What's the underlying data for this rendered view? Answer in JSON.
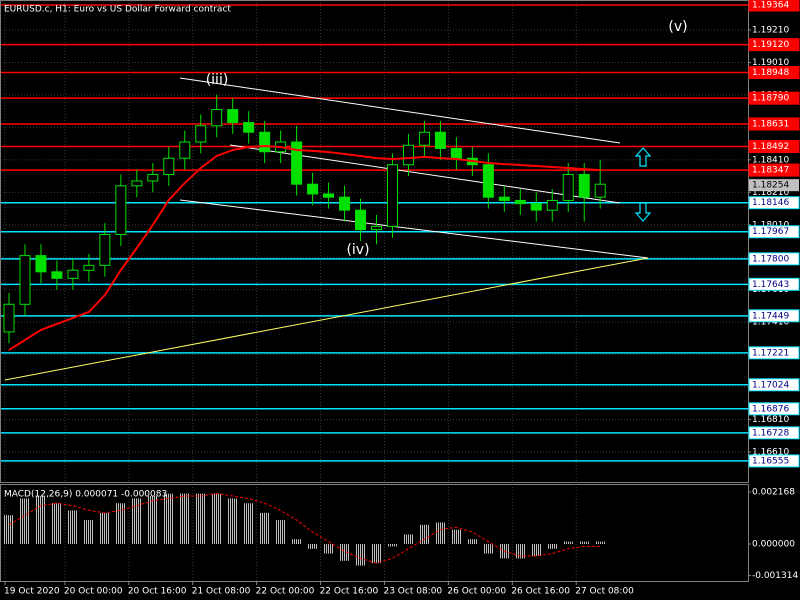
{
  "chart_data": {
    "type": "candlestick",
    "title": "EURUSD.c, H1:  Euro vs US Dollar Forward contract",
    "x": [
      1,
      5,
      9,
      13,
      17,
      21,
      25,
      29,
      33,
      37,
      41,
      45,
      49,
      53,
      57,
      61,
      65,
      69,
      73,
      77,
      81,
      85,
      89,
      93,
      97,
      101,
      105,
      109,
      113,
      117,
      121,
      125,
      129,
      133,
      137,
      141,
      145,
      149
    ],
    "open": [
      1.1735,
      1.1752,
      1.1782,
      1.1772,
      1.1768,
      1.1773,
      1.1776,
      1.1795,
      1.1825,
      1.1828,
      1.1832,
      1.1842,
      1.1852,
      1.1862,
      1.1872,
      1.1864,
      1.1858,
      1.1846,
      1.1852,
      1.1826,
      1.182,
      1.1818,
      1.181,
      1.1798,
      1.18,
      1.1838,
      1.185,
      1.1858,
      1.1848,
      1.1842,
      1.1838,
      1.1818,
      1.1816,
      1.1814,
      1.181,
      1.1816,
      1.1832,
      1.1818
    ],
    "high": [
      1.1759,
      1.1789,
      1.1789,
      1.1779,
      1.178,
      1.1783,
      1.1802,
      1.1832,
      1.1835,
      1.1839,
      1.1849,
      1.1859,
      1.1869,
      1.1881,
      1.1879,
      1.1871,
      1.1865,
      1.1859,
      1.1862,
      1.1833,
      1.1827,
      1.1825,
      1.1817,
      1.1807,
      1.1845,
      1.1857,
      1.1865,
      1.1865,
      1.1855,
      1.1849,
      1.1845,
      1.1825,
      1.1823,
      1.1821,
      1.1823,
      1.1839,
      1.1839,
      1.1841
    ],
    "low": [
      1.1728,
      1.1745,
      1.1765,
      1.1761,
      1.1761,
      1.1766,
      1.1769,
      1.1788,
      1.1818,
      1.1821,
      1.1825,
      1.1835,
      1.1845,
      1.1855,
      1.1857,
      1.1851,
      1.1839,
      1.1839,
      1.1819,
      1.1813,
      1.1811,
      1.1803,
      1.1791,
      1.1789,
      1.1793,
      1.1831,
      1.1843,
      1.1841,
      1.1835,
      1.1831,
      1.1811,
      1.1809,
      1.1807,
      1.1803,
      1.1803,
      1.1809,
      1.1803,
      1.1811
    ],
    "close": [
      1.1752,
      1.1782,
      1.1772,
      1.1768,
      1.1773,
      1.1776,
      1.1795,
      1.1825,
      1.1828,
      1.1832,
      1.1842,
      1.1852,
      1.1862,
      1.1872,
      1.1864,
      1.1858,
      1.1846,
      1.1852,
      1.1826,
      1.182,
      1.1818,
      1.181,
      1.1798,
      1.18,
      1.1838,
      1.185,
      1.1858,
      1.1848,
      1.1842,
      1.1838,
      1.1818,
      1.1816,
      1.1814,
      1.181,
      1.1816,
      1.1832,
      1.1818,
      1.1826
    ],
    "candle_color": "#00e000",
    "moving_average": {
      "color": "#ff0000",
      "values": [
        1.17238,
        1.173,
        1.17362,
        1.17399,
        1.17436,
        1.17473,
        1.17577,
        1.17731,
        1.17867,
        1.18009,
        1.18163,
        1.18267,
        1.1836,
        1.18434,
        1.18471,
        1.18489,
        1.18495,
        1.18489,
        1.18471,
        1.18465,
        1.18458,
        1.18446,
        1.18434,
        1.18421,
        1.18415,
        1.18421,
        1.18428,
        1.18421,
        1.18415,
        1.18403,
        1.18391,
        1.18384,
        1.18378,
        1.18372,
        1.18366,
        1.1836,
        1.18353,
        1.18347
      ]
    },
    "xlim": [
      0,
      186
    ],
    "xticks": [
      {
        "value": 0,
        "label": "19 Oct 2020"
      },
      {
        "value": 15,
        "label": "20 Oct 00:00"
      },
      {
        "value": 31,
        "label": "20 Oct 16:00"
      },
      {
        "value": 47,
        "label": "21 Oct 08:00"
      },
      {
        "value": 63,
        "label": "22 Oct 00:00"
      },
      {
        "value": 79,
        "label": "22 Oct 16:00"
      },
      {
        "value": 95,
        "label": "23 Oct 08:00"
      },
      {
        "value": 111,
        "label": "26 Oct 00:00"
      },
      {
        "value": 127,
        "label": "26 Oct 16:00"
      },
      {
        "value": 143,
        "label": "27 Oct 08:00"
      }
    ],
    "ylim": [
      1.16425,
      1.19395
    ],
    "yticks": [
      {
        "value": 1.1921,
        "label": "1.19210"
      },
      {
        "value": 1.1901,
        "label": "1.19010"
      },
      {
        "value": 1.1881,
        "label": "1.18810"
      },
      {
        "value": 1.1861,
        "label": "1.18610"
      },
      {
        "value": 1.1841,
        "label": "1.18410"
      },
      {
        "value": 1.1821,
        "label": "1.18210"
      },
      {
        "value": 1.1801,
        "label": "1.18010"
      },
      {
        "value": 1.1781,
        "label": "1.17810"
      },
      {
        "value": 1.1761,
        "label": "1.17610"
      },
      {
        "value": 1.1741,
        "label": "1.17410"
      },
      {
        "value": 1.1721,
        "label": "1.17210"
      },
      {
        "value": 1.1701,
        "label": "1.17010"
      },
      {
        "value": 1.1681,
        "label": "1.16810"
      },
      {
        "value": 1.1661,
        "label": "1.16610"
      }
    ],
    "grid": true,
    "levels": {
      "values": [
        1.19364,
        1.1912,
        1.18948,
        1.1879,
        1.18631,
        1.18492,
        1.18347,
        1.18146,
        1.17967,
        1.178,
        1.17643,
        1.17449,
        1.17221,
        1.17024,
        1.16876,
        1.16728,
        1.16555
      ],
      "value_labels": [
        "1.19364",
        "1.19120",
        "1.18948",
        "1.18790",
        "1.18631",
        "1.18492",
        "1.18347",
        "1.18146",
        "1.17967",
        "1.17800",
        "1.17643",
        "1.17449",
        "1.17221",
        "1.17024",
        "1.16876",
        "1.16728",
        "1.16555"
      ],
      "colors": [
        "#ff0000",
        "#ff0000",
        "#ff0000",
        "#ff0000",
        "#ff0000",
        "#ff0000",
        "#ff0000",
        "#00e5ff",
        "#00e5ff",
        "#00e5ff",
        "#00e5ff",
        "#00e5ff",
        "#00e5ff",
        "#00e5ff",
        "#00e5ff",
        "#00e5ff",
        "#00e5ff"
      ]
    },
    "current_price": 1.18254,
    "annotations": [
      "(iii)",
      "(iv)",
      "(v)"
    ],
    "macd": {
      "title": "MACD(12,26,9) 0.000071 -0.000083",
      "histogram": [
        0.0012,
        0.0019,
        0.002,
        0.0017,
        0.0014,
        0.001,
        0.0013,
        0.0017,
        0.0019,
        0.002,
        0.0021,
        0.0021,
        0.0021,
        0.0021,
        0.0019,
        0.0017,
        0.0013,
        0.001,
        0.0002,
        -0.0002,
        -0.0004,
        -0.0007,
        -0.0009,
        -0.0008,
        -0.0001,
        0.0004,
        0.0008,
        0.0009,
        0.0006,
        0.0002,
        -0.0004,
        -0.0006,
        -0.0006,
        -0.0005,
        -0.0002,
        0.0001,
        0.0001,
        0.0001
      ],
      "signal": [
        0.0008,
        0.0012,
        0.0016,
        0.0017,
        0.0016,
        0.0014,
        0.0013,
        0.0014,
        0.0016,
        0.0018,
        0.0019,
        0.002,
        0.002,
        0.0021,
        0.002,
        0.0019,
        0.0017,
        0.0014,
        0.001,
        0.0005,
        0.0001,
        -0.0003,
        -0.0006,
        -0.0008,
        -0.0006,
        -0.0002,
        0.0002,
        0.0006,
        0.0007,
        0.0005,
        0.0001,
        -0.0003,
        -0.0005,
        -0.0005,
        -0.0004,
        -0.0002,
        -0.0001,
        -0.0001
      ],
      "histogram_color": "#c0c0c0",
      "signal_color": "#ff0000",
      "y2lim": [
        -0.001584,
        0.002502
      ],
      "y2ticks": [
        {
          "value": 0.002168,
          "label": "0.002168"
        },
        {
          "value": 0,
          "label": "0.000000"
        },
        {
          "value": -0.001314,
          "label": "-0.001314"
        }
      ]
    }
  }
}
